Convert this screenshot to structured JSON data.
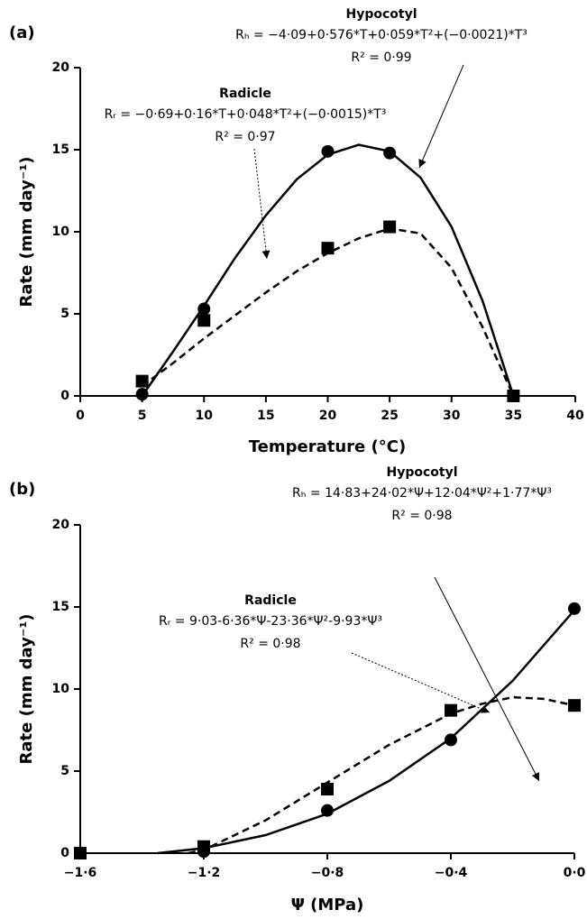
{
  "chart_data": [
    {
      "type": "line",
      "panel_label": "(a)",
      "x_label": "Temperature (°C)",
      "y_label": "Rate (mm day⁻¹)",
      "xlim": [
        0,
        40
      ],
      "xticks": [
        0,
        5,
        10,
        15,
        20,
        25,
        30,
        35,
        40
      ],
      "ylim": [
        0,
        20
      ],
      "yticks": [
        0,
        5,
        10,
        15,
        20
      ],
      "x": [
        5,
        10,
        20,
        25,
        35
      ],
      "series": [
        {
          "name": "Hypocotyl",
          "equation": "Rₕ = −4·09+0·576*T+0·059*T²+(−0·0021)*T³",
          "r_squared": "R² = 0·99",
          "marker": "circle",
          "dash": false,
          "color": "#000000",
          "values": [
            0.1,
            5.3,
            14.9,
            14.8,
            0
          ],
          "fit_x": [
            5,
            7.5,
            10,
            12.5,
            15,
            17.5,
            20,
            22.5,
            25,
            27.5,
            30,
            32.5,
            35
          ],
          "fit_values": [
            0,
            2.7,
            5.5,
            8.4,
            11,
            13.2,
            14.7,
            15.3,
            14.9,
            13.3,
            10.3,
            5.8,
            0
          ]
        },
        {
          "name": "Radicle",
          "equation": "Rᵣ = −0·69+0·16*T+0·048*T²+(−0·0015)*T³",
          "r_squared": "R² = 0·97",
          "marker": "square",
          "dash": true,
          "color": "#000000",
          "values": [
            0.9,
            4.6,
            9.0,
            10.3,
            0
          ],
          "fit_x": [
            5,
            7.5,
            10,
            12.5,
            15,
            17.5,
            20,
            22.5,
            25,
            27.5,
            30,
            32.5,
            35
          ],
          "fit_values": [
            0.6,
            2.0,
            3.5,
            4.9,
            6.3,
            7.6,
            8.7,
            9.6,
            10.2,
            9.9,
            7.8,
            4.2,
            0
          ]
        }
      ]
    },
    {
      "type": "line",
      "panel_label": "(b)",
      "x_label": "Ψ (MPa)",
      "y_label": "Rate (mm day⁻¹)",
      "xlim": [
        -1.6,
        0
      ],
      "xticks": [
        {
          "value": -1.6,
          "label": "−1·6"
        },
        {
          "value": -1.2,
          "label": "−1·2"
        },
        {
          "value": -0.8,
          "label": "−0·8"
        },
        {
          "value": -0.4,
          "label": "−0·4"
        },
        {
          "value": 0,
          "label": "0·0"
        }
      ],
      "ylim": [
        0,
        20
      ],
      "yticks": [
        0,
        5,
        10,
        15,
        20
      ],
      "x": [
        -1.6,
        -1.2,
        -0.8,
        -0.4,
        0
      ],
      "series": [
        {
          "name": "Hypocotyl",
          "equation": "Rₕ = 14·83+24·02*Ψ+12·04*Ψ²+1·77*Ψ³",
          "r_squared": "R² = 0·98",
          "marker": "circle",
          "dash": false,
          "color": "#000000",
          "values": [
            0,
            0.1,
            2.6,
            6.9,
            14.9
          ],
          "fit_x": [
            -1.35,
            -1.2,
            -1.0,
            -0.8,
            -0.6,
            -0.4,
            -0.2,
            0
          ],
          "fit_values": [
            0,
            0.3,
            1.1,
            2.4,
            4.4,
            7.0,
            10.5,
            14.8
          ]
        },
        {
          "name": "Radicle",
          "equation": "Rᵣ = 9·03-6·36*Ψ-23·36*Ψ²-9·93*Ψ³",
          "r_squared": "R² = 0·98",
          "marker": "square",
          "dash": true,
          "color": "#000000",
          "values": [
            0,
            0.4,
            3.9,
            8.7,
            9.0
          ],
          "fit_x": [
            -1.25,
            -1.2,
            -1.0,
            -0.8,
            -0.6,
            -0.4,
            -0.3,
            -0.2,
            -0.1,
            0
          ],
          "fit_values": [
            0,
            0.2,
            2.0,
            4.3,
            6.6,
            8.5,
            9.1,
            9.5,
            9.4,
            9.0
          ]
        }
      ]
    }
  ]
}
